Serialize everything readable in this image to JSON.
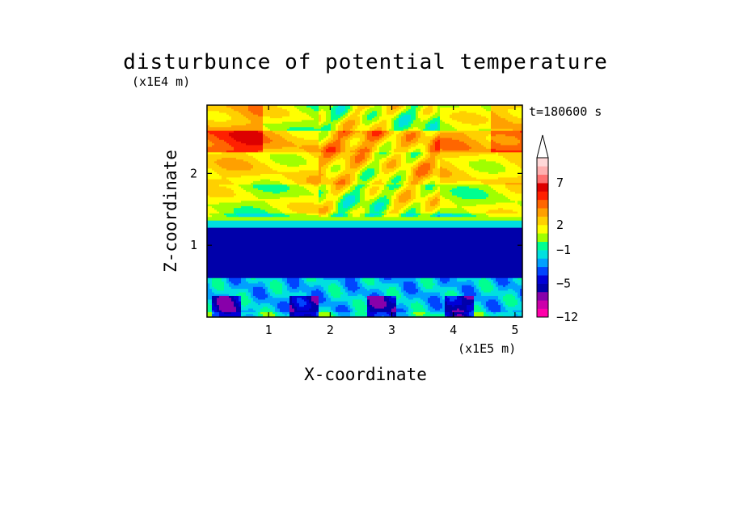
{
  "chart_data": {
    "type": "heatmap",
    "title": "disturbunce of potential temperature",
    "xlabel": "X-coordinate",
    "ylabel": "Z-coordinate",
    "x_unit": "(x1E5 m)",
    "y_unit": "(x1E4 m)",
    "time_label": "t=180600 s",
    "xlim": [
      0,
      5.12
    ],
    "ylim": [
      0,
      2.95
    ],
    "x_ticks": [
      {
        "value": 1,
        "label": "1"
      },
      {
        "value": 2,
        "label": "2"
      },
      {
        "value": 3,
        "label": "3"
      },
      {
        "value": 4,
        "label": "4"
      },
      {
        "value": 5,
        "label": "5"
      }
    ],
    "y_ticks": [
      {
        "value": 1,
        "label": "1"
      },
      {
        "value": 2,
        "label": "2"
      }
    ],
    "colorbar": {
      "levels": [
        -12,
        -10,
        -8,
        -6,
        -5,
        -4,
        -3,
        -2,
        -1,
        0,
        1,
        2,
        3,
        4,
        5,
        6,
        7,
        8,
        9,
        10
      ],
      "colors": [
        "#ff00aa",
        "#cc00aa",
        "#8800aa",
        "#0000aa",
        "#0000d8",
        "#0044ff",
        "#00a0ff",
        "#00e0e0",
        "#00ff90",
        "#a0ff00",
        "#ffff00",
        "#ffd000",
        "#ffa000",
        "#ff6600",
        "#ff2000",
        "#dd0000",
        "#ff7070",
        "#ffb0b0",
        "#ffd8d8"
      ],
      "tick_labels": [
        {
          "value": -12,
          "label": "−12"
        },
        {
          "value": -5,
          "label": "−5"
        },
        {
          "value": -1,
          "label": "−1"
        },
        {
          "value": 2,
          "label": "2"
        },
        {
          "value": 7,
          "label": "7"
        }
      ],
      "extend": "max"
    },
    "field_description_bands": [
      {
        "z": [
          0.0,
          0.08
        ],
        "value": -1
      },
      {
        "z": [
          0.08,
          0.55
        ],
        "value": -2
      },
      {
        "z": [
          0.55,
          1.25
        ],
        "value": -6
      },
      {
        "z": [
          1.25,
          1.35
        ],
        "value": -2
      },
      {
        "z": [
          1.35,
          1.45
        ],
        "value": 0
      },
      {
        "z": [
          1.45,
          1.85
        ],
        "value": 1
      },
      {
        "z": [
          1.85,
          2.3
        ],
        "value": 2
      },
      {
        "z": [
          2.3,
          2.6
        ],
        "value": 3
      },
      {
        "z": [
          2.6,
          2.95
        ],
        "value": 1
      }
    ]
  }
}
